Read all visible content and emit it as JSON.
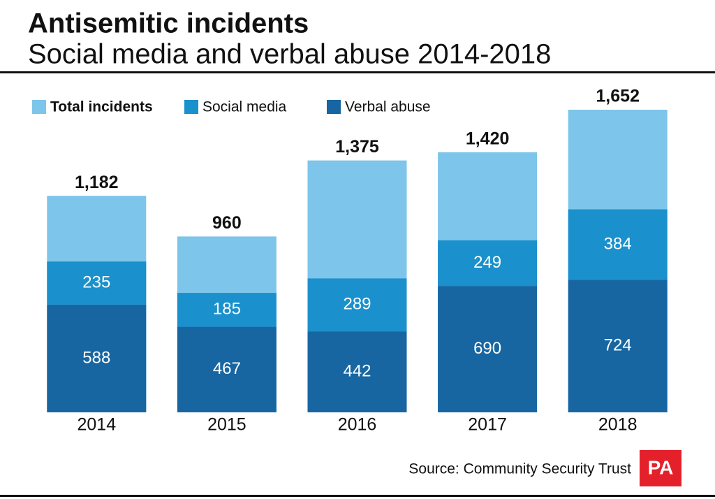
{
  "chart_data": {
    "type": "bar",
    "stacked": true,
    "title": "Antisemitic incidents",
    "subtitle": "Social media and verbal abuse 2014-2018",
    "categories": [
      "2014",
      "2015",
      "2016",
      "2017",
      "2018"
    ],
    "series": [
      {
        "name": "Total incidents",
        "color": "#7dc5ea",
        "values": [
          1182,
          960,
          1375,
          1420,
          1652
        ],
        "value_labels": [
          "1,182",
          "960",
          "1,375",
          "1,420",
          "1,652"
        ]
      },
      {
        "name": "Social media",
        "color": "#1a90cc",
        "values": [
          235,
          185,
          289,
          249,
          384
        ]
      },
      {
        "name": "Verbal abuse",
        "color": "#1766a2",
        "values": [
          588,
          467,
          442,
          690,
          724
        ]
      }
    ],
    "source": "Source: Community Security Trust",
    "logo": "PA"
  }
}
